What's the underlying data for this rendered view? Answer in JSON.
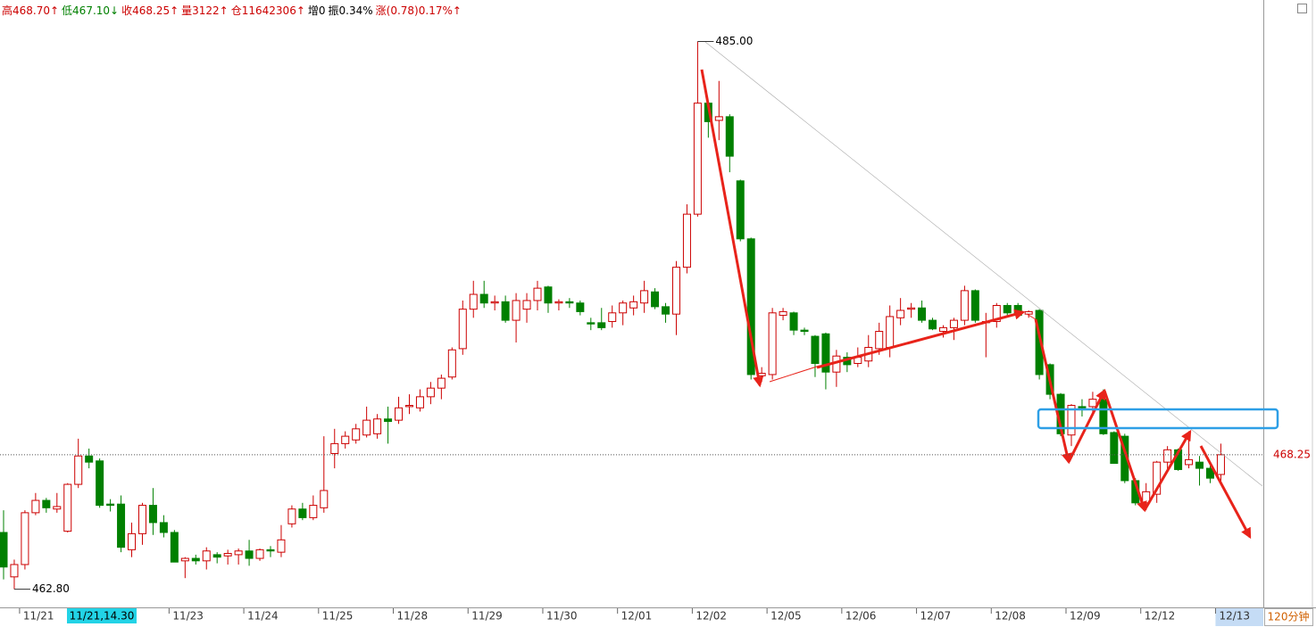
{
  "header": [
    "高468.70↑",
    "低467.10↓",
    "收468.25↑",
    "量3122↑",
    "仓11642306↑",
    "增0",
    "振0.34%",
    "涨(0.78)0.17%↑"
  ],
  "cursor": "11/21,14.30",
  "period": "120分钟",
  "chart_data": {
    "type": "candlestick",
    "up_color": "#cc0000",
    "down_color": "#008000",
    "ylim": [
      462.1,
      486.68
    ],
    "categories": [
      null,
      null,
      "11/21",
      null,
      null,
      null,
      null,
      null,
      null,
      null,
      null,
      null,
      null,
      null,
      null,
      null,
      "11/23",
      null,
      null,
      null,
      null,
      null,
      null,
      "11/24",
      null,
      null,
      null,
      null,
      null,
      null,
      "11/25",
      null,
      null,
      null,
      null,
      null,
      null,
      "11/28",
      null,
      null,
      null,
      null,
      null,
      null,
      "11/29",
      null,
      null,
      null,
      null,
      null,
      null,
      "11/30",
      null,
      null,
      null,
      null,
      null,
      null,
      "12/01",
      null,
      null,
      null,
      null,
      null,
      null,
      "12/02",
      null,
      null,
      null,
      null,
      null,
      null,
      "12/05",
      null,
      null,
      null,
      null,
      null,
      null,
      "12/06",
      null,
      null,
      null,
      null,
      null,
      null,
      "12/07",
      null,
      null,
      null,
      null,
      null,
      null,
      "12/08",
      null,
      null,
      null,
      null,
      null,
      null,
      "12/09",
      null,
      null,
      null,
      null,
      null,
      null,
      "12/12",
      null,
      null,
      null,
      null,
      null,
      null,
      "12/13"
    ],
    "open": [
      465.1,
      463.3,
      463.8,
      465.9,
      466.4,
      466.05,
      465.15,
      467.05,
      468.2,
      468.0,
      466.25,
      466.25,
      464.4,
      465.05,
      466.2,
      465.5,
      465.1,
      463.95,
      464.05,
      463.95,
      464.2,
      464.15,
      464.2,
      464.35,
      464.05,
      464.4,
      464.3,
      465.45,
      466.05,
      465.7,
      466.1,
      468.3,
      468.7,
      468.85,
      469.05,
      469.1,
      469.7,
      469.65,
      470.2,
      470.15,
      470.6,
      470.95,
      471.4,
      472.55,
      474.15,
      474.75,
      474.4,
      474.45,
      473.7,
      474.15,
      474.5,
      475.05,
      474.4,
      474.45,
      474.4,
      473.6,
      473.6,
      473.65,
      474.0,
      474.2,
      474.4,
      474.85,
      474.25,
      473.95,
      475.85,
      478.0,
      482.5,
      481.8,
      481.95,
      479.35,
      477.0,
      471.45,
      471.5,
      473.9,
      474.0,
      473.3,
      473.05,
      473.15,
      471.6,
      472.2,
      471.95,
      472.05,
      472.55,
      472.6,
      473.8,
      474.15,
      474.2,
      473.7,
      473.25,
      473.4,
      473.7,
      474.9,
      473.6,
      473.65,
      474.3,
      474.3,
      473.95,
      474.1,
      471.9,
      470.7,
      469.05,
      470.2,
      470.2,
      470.5,
      469.15,
      469.0,
      467.2,
      466.3,
      466.65,
      467.95,
      468.45,
      467.85,
      467.95,
      467.7,
      467.45
    ],
    "high": [
      466.0,
      464.0,
      466.0,
      466.7,
      466.5,
      466.7,
      467.1,
      468.9,
      468.5,
      468.1,
      466.45,
      466.6,
      465.5,
      466.3,
      466.9,
      465.8,
      465.2,
      464.1,
      464.2,
      464.5,
      464.3,
      464.4,
      464.45,
      464.8,
      464.45,
      464.55,
      465.4,
      466.2,
      466.3,
      466.6,
      469.0,
      469.3,
      469.2,
      469.5,
      470.2,
      469.9,
      470.2,
      470.6,
      470.7,
      470.9,
      471.2,
      471.5,
      472.6,
      474.5,
      475.3,
      475.3,
      474.7,
      474.7,
      474.8,
      474.8,
      475.3,
      475.1,
      474.55,
      474.6,
      474.5,
      473.8,
      474.2,
      474.3,
      474.5,
      474.7,
      475.3,
      475.0,
      474.4,
      476.1,
      478.4,
      485.0,
      482.55,
      483.4,
      482.05,
      479.4,
      477.05,
      471.8,
      474.2,
      474.2,
      474.05,
      473.4,
      473.1,
      473.2,
      472.5,
      472.4,
      472.6,
      473.1,
      473.6,
      474.3,
      474.6,
      474.4,
      474.5,
      473.8,
      473.5,
      473.8,
      475.1,
      474.95,
      474.0,
      474.4,
      474.4,
      474.4,
      474.1,
      474.15,
      471.95,
      470.75,
      470.3,
      470.5,
      470.8,
      470.9,
      469.2,
      469.1,
      467.3,
      467.1,
      468.0,
      468.6,
      468.5,
      469.2,
      468.2,
      467.8,
      468.7
    ],
    "low": [
      463.2,
      462.8,
      463.6,
      465.8,
      465.9,
      465.9,
      465.1,
      466.9,
      467.7,
      466.1,
      465.95,
      464.3,
      464.1,
      464.6,
      465.0,
      464.9,
      463.9,
      463.25,
      463.8,
      463.6,
      463.85,
      463.8,
      463.8,
      463.75,
      463.95,
      464.1,
      464.1,
      465.3,
      465.6,
      465.6,
      465.9,
      467.7,
      468.5,
      468.7,
      468.95,
      468.9,
      468.7,
      469.5,
      469.9,
      470.0,
      470.3,
      470.5,
      471.3,
      472.3,
      473.8,
      474.2,
      474.1,
      473.6,
      472.8,
      473.6,
      474.1,
      474.0,
      474.1,
      474.2,
      473.9,
      473.3,
      473.3,
      473.4,
      473.5,
      473.9,
      474.0,
      474.15,
      473.6,
      473.1,
      475.6,
      477.9,
      481.1,
      481.0,
      479.7,
      476.9,
      471.3,
      471.2,
      471.3,
      473.7,
      473.1,
      473.1,
      471.4,
      470.9,
      471.0,
      471.6,
      471.8,
      471.8,
      472.3,
      472.2,
      473.5,
      473.8,
      473.6,
      473.3,
      473.0,
      472.9,
      473.5,
      473.6,
      472.2,
      473.4,
      473.9,
      473.8,
      473.8,
      471.3,
      470.5,
      469.0,
      468.6,
      469.8,
      469.9,
      469.05,
      467.9,
      467.1,
      466.2,
      466.0,
      466.3,
      467.6,
      467.6,
      467.7,
      467.0,
      467.1,
      467.1
    ],
    "close": [
      463.7,
      463.8,
      465.9,
      466.4,
      466.1,
      466.15,
      467.05,
      468.2,
      467.95,
      466.2,
      466.2,
      464.5,
      465.05,
      466.2,
      465.5,
      465.1,
      463.9,
      464.05,
      463.95,
      464.35,
      464.1,
      464.25,
      464.35,
      464.05,
      464.4,
      464.35,
      464.8,
      466.05,
      465.7,
      466.2,
      466.8,
      468.7,
      469.0,
      469.3,
      469.65,
      469.7,
      469.6,
      470.15,
      470.25,
      470.6,
      470.95,
      471.35,
      472.5,
      474.15,
      474.75,
      474.4,
      474.45,
      473.7,
      474.5,
      474.5,
      475.0,
      474.4,
      474.45,
      474.4,
      474.05,
      473.55,
      473.4,
      474.0,
      474.4,
      474.45,
      474.9,
      474.25,
      473.95,
      475.85,
      478.0,
      482.5,
      481.75,
      481.95,
      480.35,
      477.0,
      471.5,
      471.55,
      474.0,
      474.05,
      473.3,
      473.25,
      471.95,
      471.6,
      472.25,
      471.9,
      472.2,
      472.6,
      473.25,
      473.85,
      474.1,
      474.2,
      473.7,
      473.35,
      473.4,
      473.7,
      474.9,
      473.7,
      473.65,
      474.3,
      474.0,
      473.9,
      474.05,
      471.5,
      470.7,
      469.1,
      470.25,
      470.15,
      470.5,
      469.1,
      467.9,
      467.2,
      466.3,
      466.75,
      467.95,
      468.45,
      467.65,
      468.05,
      467.7,
      467.3,
      468.25
    ],
    "annotations": {
      "high": {
        "value": 485.0,
        "label": "485.00"
      },
      "low": {
        "value": 462.8,
        "label": "462.80"
      },
      "last": {
        "value": 468.25,
        "label": "468.25"
      }
    }
  }
}
